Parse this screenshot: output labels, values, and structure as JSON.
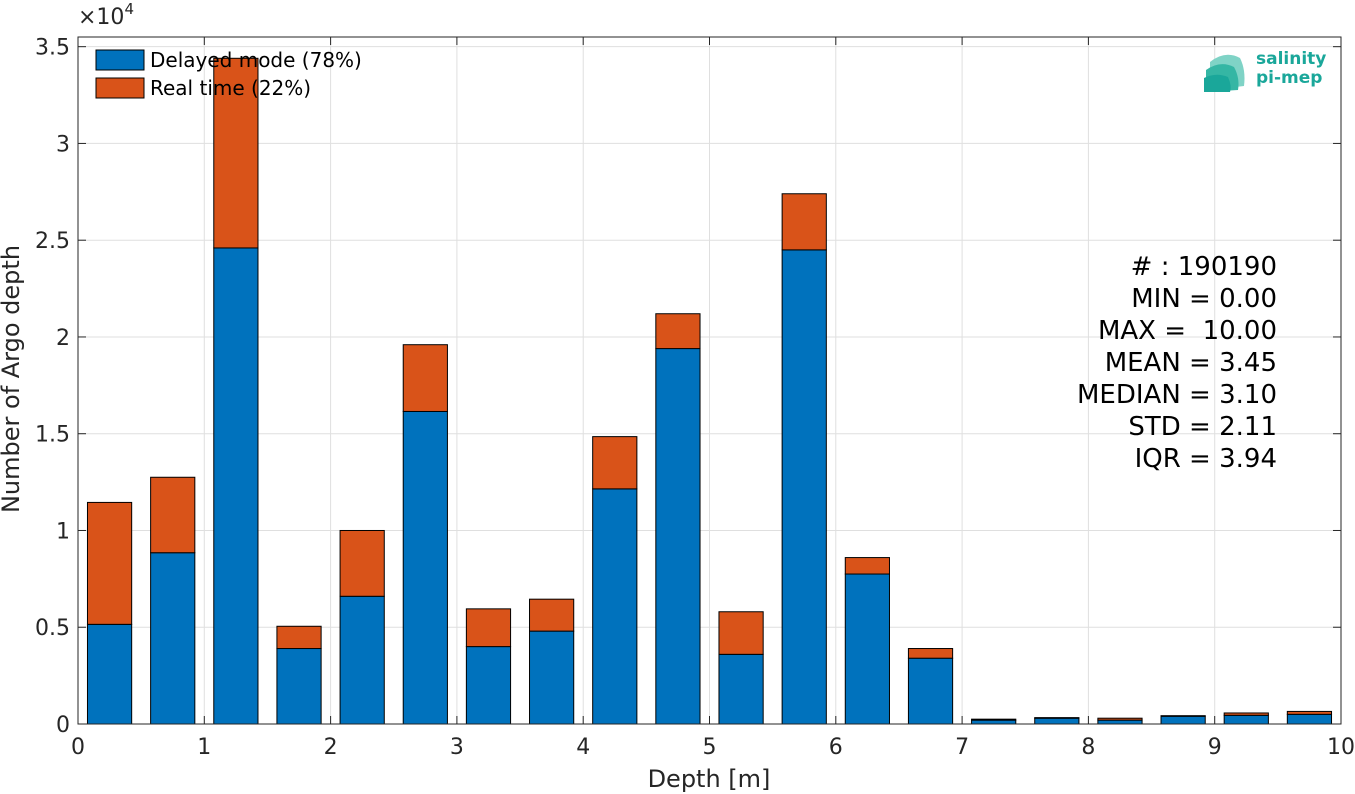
{
  "chart_data": {
    "type": "bar",
    "stacked": true,
    "xlabel": "Depth [m]",
    "ylabel": "Number of Argo depth",
    "xlim": [
      0,
      10
    ],
    "ylim": [
      0,
      35500
    ],
    "y_exponent_label": "×10",
    "y_exponent_power": "4",
    "xticks": [
      "0",
      "1",
      "2",
      "3",
      "4",
      "5",
      "6",
      "7",
      "8",
      "9",
      "10"
    ],
    "yticks": [
      "0",
      "0.5",
      "1",
      "1.5",
      "2",
      "2.5",
      "3",
      "3.5"
    ],
    "grid": true,
    "legend_position": "top-left",
    "x": [
      0.25,
      0.75,
      1.25,
      1.75,
      2.25,
      2.75,
      3.25,
      3.75,
      4.25,
      4.75,
      5.25,
      5.75,
      6.25,
      6.75,
      7.25,
      7.75,
      8.25,
      8.75,
      9.25,
      9.75
    ],
    "bin_width": 0.5,
    "series": [
      {
        "name": "Delayed mode (78%)",
        "color": "#0072bd",
        "values": [
          5150,
          8850,
          24600,
          3900,
          6600,
          16150,
          4000,
          4800,
          12150,
          19400,
          3600,
          24500,
          7750,
          3400,
          200,
          300,
          200,
          400,
          450,
          500
        ]
      },
      {
        "name": "Real time (22%)",
        "color": "#d95319",
        "values": [
          6300,
          3900,
          9800,
          1150,
          3400,
          3450,
          1950,
          1650,
          2700,
          1800,
          2200,
          2900,
          850,
          500,
          50,
          30,
          100,
          30,
          120,
          150
        ]
      }
    ]
  },
  "stats": {
    "lines": [
      "# : 190190",
      "MIN = 0.00",
      "MAX =  10.00",
      "MEAN = 3.45",
      "MEDIAN = 3.10",
      "STD = 2.11",
      "IQR = 3.94"
    ]
  },
  "logo": {
    "line1": "salinity",
    "line2": "pi-mep",
    "color": "#1aa79a"
  }
}
